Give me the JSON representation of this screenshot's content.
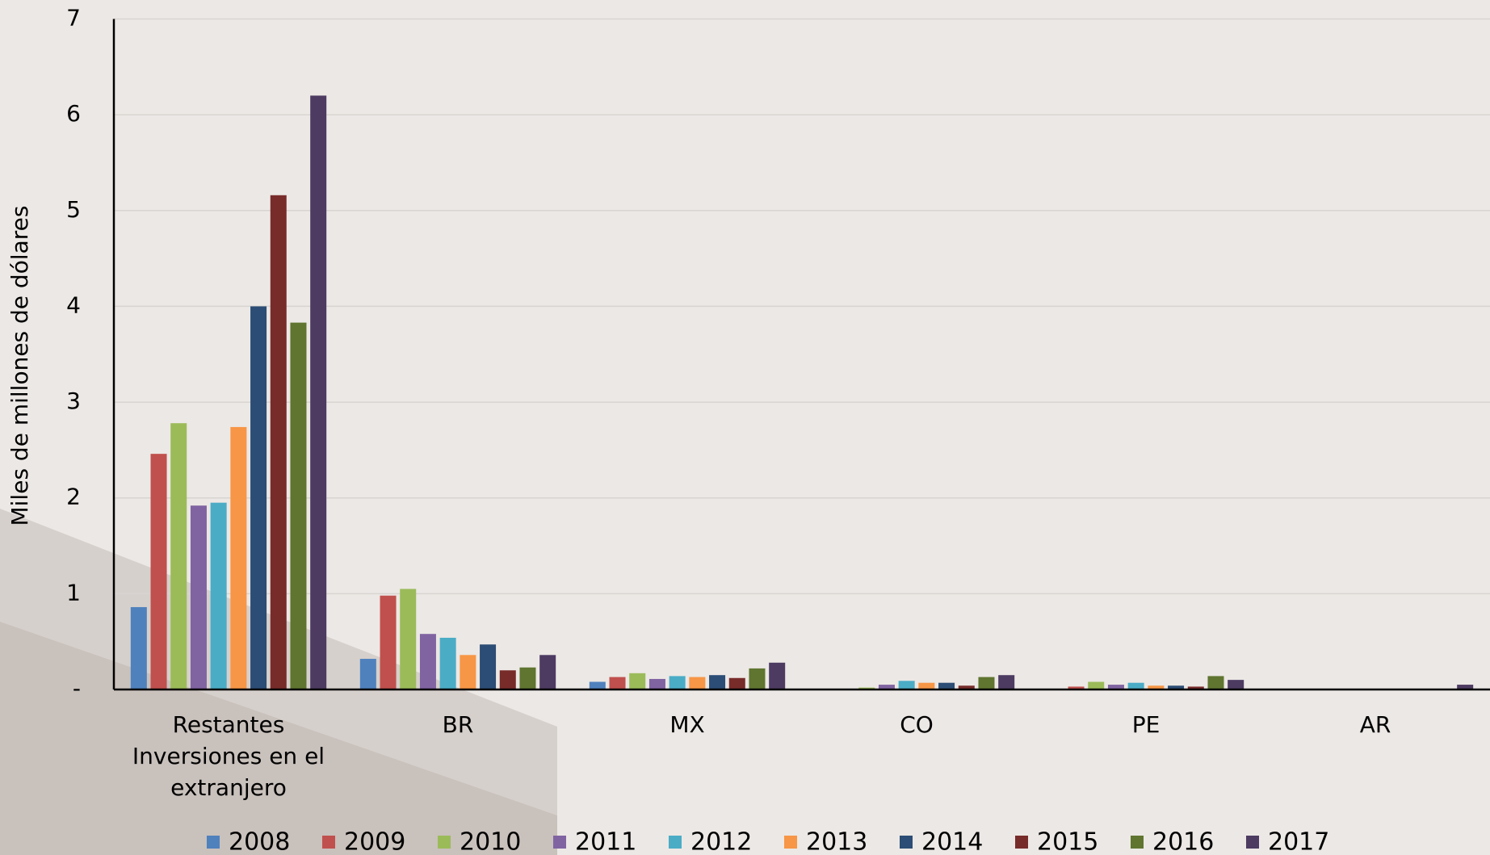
{
  "chart_data": {
    "type": "bar",
    "y_label": "Miles de millones de dólares",
    "categories": [
      "Restantes Inversiones en el extranjero",
      "BR",
      "MX",
      "CO",
      "PE",
      "AR"
    ],
    "series": [
      {
        "name": "2008",
        "color": "#4f81bd",
        "values": [
          0.86,
          0.32,
          0.08,
          0,
          0,
          0
        ]
      },
      {
        "name": "2009",
        "color": "#c0504d",
        "values": [
          2.46,
          0.98,
          0.13,
          0,
          0.03,
          0
        ]
      },
      {
        "name": "2010",
        "color": "#9bbb59",
        "values": [
          2.78,
          1.05,
          0.17,
          0.02,
          0.08,
          0
        ]
      },
      {
        "name": "2011",
        "color": "#8064a2",
        "values": [
          1.92,
          0.58,
          0.11,
          0.05,
          0.05,
          0
        ]
      },
      {
        "name": "2012",
        "color": "#4bacc6",
        "values": [
          1.95,
          0.54,
          0.14,
          0.09,
          0.07,
          0
        ]
      },
      {
        "name": "2013",
        "color": "#f79646",
        "values": [
          2.74,
          0.36,
          0.13,
          0.07,
          0.04,
          0
        ]
      },
      {
        "name": "2014",
        "color": "#2c4d75",
        "values": [
          4.0,
          0.47,
          0.15,
          0.07,
          0.04,
          0
        ]
      },
      {
        "name": "2015",
        "color": "#772c2a",
        "values": [
          5.16,
          0.2,
          0.12,
          0.04,
          0.03,
          0
        ]
      },
      {
        "name": "2016",
        "color": "#5f7530",
        "values": [
          3.83,
          0.23,
          0.22,
          0.13,
          0.14,
          0
        ]
      },
      {
        "name": "2017",
        "color": "#4d3b62",
        "values": [
          6.2,
          0.36,
          0.28,
          0.15,
          0.1,
          0.05
        ]
      }
    ],
    "ylim": [
      0,
      7
    ],
    "yticks": [
      {
        "value": 0,
        "label": "-"
      },
      1,
      2,
      3,
      4,
      5,
      6,
      7
    ],
    "grid": true
  }
}
